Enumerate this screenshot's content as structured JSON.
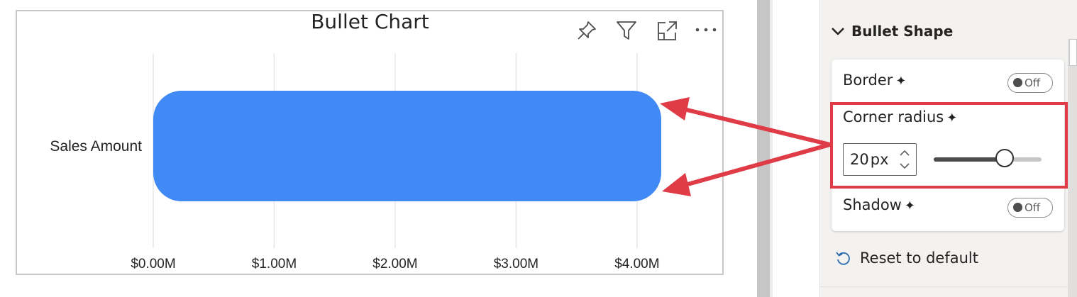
{
  "visual": {
    "title": "Bullet Chart",
    "header_icons": [
      "pin-icon",
      "filter-icon",
      "focus-mode-icon",
      "more-options-icon"
    ]
  },
  "chart_data": {
    "type": "bar",
    "orientation": "horizontal",
    "categories": [
      "Sales Amount"
    ],
    "values": [
      4.2
    ],
    "x_tick_labels": [
      "$0.00M",
      "$1.00M",
      "$2.00M",
      "$3.00M",
      "$4.00M"
    ],
    "x_ticks": [
      0,
      1,
      2,
      3,
      4
    ],
    "xlim": [
      0,
      4.2
    ],
    "grid": true,
    "bar_color": "#4189F4",
    "bar_corner_radius": "20px"
  },
  "format_pane": {
    "section_title": "Bullet Shape",
    "border": {
      "label": "Border",
      "toggle": "Off"
    },
    "corner_radius": {
      "label": "Corner radius",
      "value": "20",
      "unit": "px",
      "slider_fraction": 0.66
    },
    "shadow": {
      "label": "Shadow",
      "toggle": "Off"
    },
    "reset_label": "Reset to default"
  },
  "colors": {
    "bar": "#4189F4",
    "annotation": "#E03C47",
    "grid": "#E6E6E6",
    "pane_bg": "#F3F2F1"
  },
  "icons": {
    "sparkle": "✦",
    "collapse": "chevron-down-icon",
    "reset": "reset-icon"
  }
}
